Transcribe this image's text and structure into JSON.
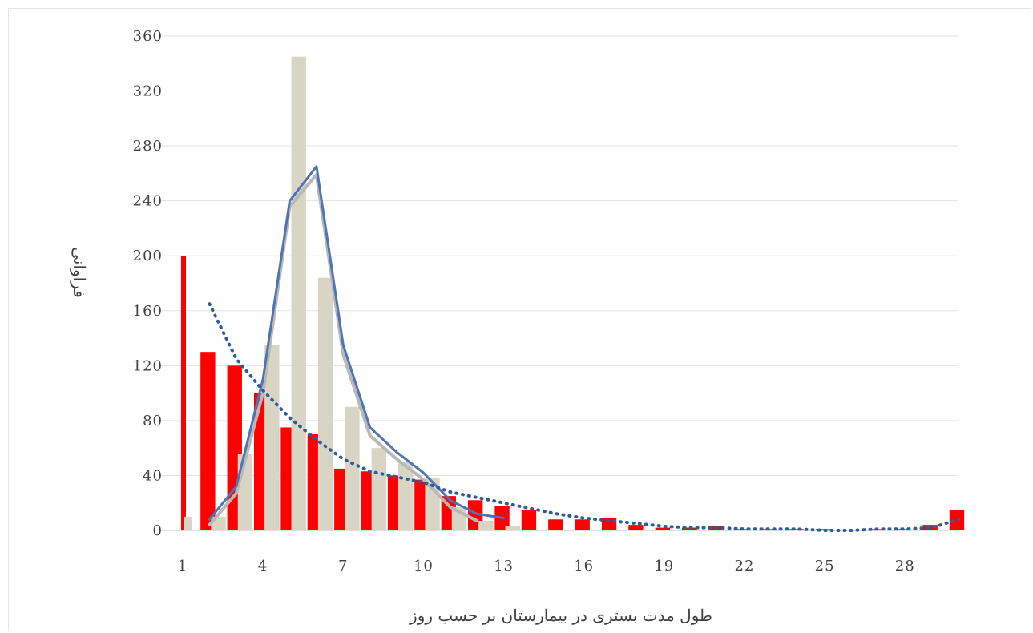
{
  "chart_data": {
    "type": "bar",
    "title": "",
    "xlabel": "طول مدت بستری در بیمارستان بر حسب روز",
    "ylabel": "فراوانی",
    "ylim": [
      0,
      360
    ],
    "xlim": [
      1,
      30
    ],
    "y_ticks": [
      "0",
      "40",
      "80",
      "120",
      "160",
      "200",
      "240",
      "280",
      "320",
      "360"
    ],
    "x_ticks": [
      "1",
      "4",
      "7",
      "10",
      "13",
      "16",
      "19",
      "22",
      "25",
      "28"
    ],
    "grid": true,
    "legend": "none",
    "x": [
      1,
      2,
      3,
      4,
      5,
      6,
      7,
      8,
      9,
      10,
      11,
      12,
      13,
      14,
      15,
      16,
      17,
      18,
      19,
      20,
      21,
      22,
      23,
      24,
      25,
      26,
      27,
      28,
      29,
      30
    ],
    "series": [
      {
        "type": "bar",
        "color": "#ff0000",
        "values": [
          200,
          130,
          120,
          100,
          75,
          70,
          45,
          43,
          40,
          37,
          25,
          22,
          18,
          15,
          8,
          8,
          9,
          4,
          2,
          2,
          3,
          1,
          1,
          1,
          1,
          0,
          1,
          1,
          4,
          15
        ]
      },
      {
        "type": "bar",
        "color": "#d9d5c4",
        "values": [
          10,
          10,
          56,
          135,
          345,
          184,
          90,
          60,
          50,
          38,
          17,
          7,
          3,
          0,
          0,
          0,
          0,
          0,
          0,
          0,
          0,
          0,
          0,
          0,
          0,
          0,
          0,
          0,
          0,
          0
        ]
      },
      {
        "type": "line",
        "color": "#4f74b5",
        "style": "solid",
        "x": [
          2,
          3,
          4,
          5,
          6,
          7,
          8,
          9,
          10,
          11,
          12,
          13
        ],
        "values": [
          8,
          32,
          110,
          240,
          265,
          135,
          75,
          57,
          42,
          22,
          12,
          9
        ]
      },
      {
        "type": "line",
        "color": "#b8b8b8",
        "style": "solid",
        "x": [
          2,
          3,
          4,
          5,
          6,
          7,
          8,
          9,
          10,
          11,
          12
        ],
        "values": [
          4,
          27,
          100,
          236,
          259,
          128,
          69,
          52,
          37,
          17,
          7
        ]
      },
      {
        "type": "line",
        "color": "#2e5c99",
        "style": "dotted",
        "x": [
          2,
          3,
          4,
          5,
          6,
          7,
          8,
          9,
          10,
          11,
          12,
          13,
          14,
          15,
          16,
          17,
          18,
          19,
          20,
          21,
          22,
          23,
          24,
          25,
          26,
          27,
          28,
          29,
          30
        ],
        "values": [
          165,
          125,
          102,
          82,
          66,
          52,
          43,
          39,
          35,
          28,
          24,
          20,
          16,
          12,
          9,
          7,
          5,
          3,
          2,
          2,
          1,
          1,
          1,
          0,
          0,
          1,
          1,
          2,
          8
        ]
      }
    ]
  }
}
